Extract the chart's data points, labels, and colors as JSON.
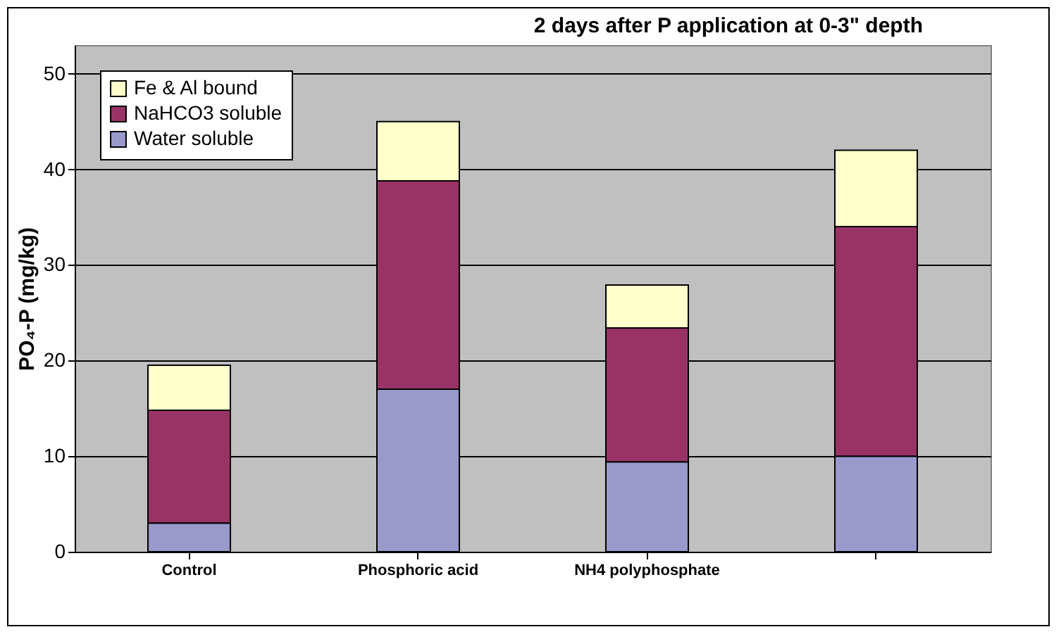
{
  "chart_data": {
    "type": "bar",
    "title": "2 days after P application at 0-3\" depth",
    "ylabel": "PO₄-P (mg/kg)",
    "categories": [
      "Control",
      "Phosphoric acid",
      "NH4 polyphosphate",
      null
    ],
    "stacked": true,
    "series": [
      {
        "name": "Water soluble",
        "color": "#9999cc",
        "values": [
          3,
          17,
          9.4,
          10
        ]
      },
      {
        "name": "NaHCO3 soluble",
        "color": "#993366",
        "values": [
          11.8,
          21.8,
          14.0,
          24
        ]
      },
      {
        "name": "Fe & Al bound",
        "color": "#ffffcc",
        "values": [
          4.7,
          6.2,
          4.5,
          8
        ]
      }
    ],
    "ylim": [
      0,
      53
    ],
    "yticks": [
      0,
      10,
      20,
      30,
      40,
      50
    ],
    "grid": "y",
    "legend": "top left"
  }
}
